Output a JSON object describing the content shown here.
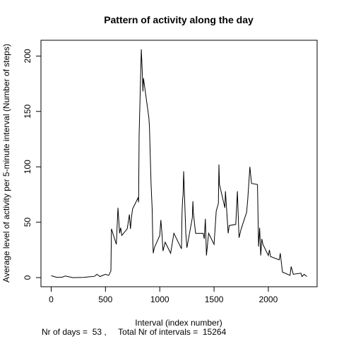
{
  "chart_data": {
    "type": "line",
    "title": "Pattern of activity along the day",
    "x_label": "Interval (index number)",
    "y_label": "Average level of activity per 5-minute interval (Number of steps)",
    "annotation": "Nr of days =  53 ,     Total Nr of intervals =  15264",
    "color": "#000000",
    "x": [
      0,
      50,
      100,
      130,
      200,
      300,
      400,
      420,
      450,
      500,
      530,
      550,
      555,
      600,
      610,
      615,
      630,
      640,
      650,
      700,
      710,
      720,
      730,
      740,
      750,
      800,
      805,
      810,
      830,
      835,
      840,
      845,
      850,
      900,
      905,
      920,
      930,
      935,
      940,
      950,
      1000,
      1010,
      1020,
      1030,
      1050,
      1100,
      1130,
      1200,
      1205,
      1210,
      1215,
      1220,
      1240,
      1250,
      1300,
      1305,
      1310,
      1330,
      1400,
      1410,
      1420,
      1430,
      1450,
      1500,
      1520,
      1540,
      1545,
      1550,
      1600,
      1605,
      1630,
      1640,
      1700,
      1715,
      1730,
      1750,
      1800,
      1810,
      1830,
      1845,
      1900,
      1910,
      1920,
      1930,
      1940,
      1950,
      2000,
      2010,
      2020,
      2100,
      2110,
      2130,
      2200,
      2210,
      2230,
      2300,
      2310,
      2330,
      2355
    ],
    "values": [
      1.7,
      0.3,
      0.3,
      1.5,
      0,
      0.2,
      1.2,
      3,
      1,
      3,
      2,
      6,
      44,
      30,
      52,
      63,
      40,
      45,
      38,
      44,
      50,
      57,
      44,
      55,
      62,
      72,
      68,
      129,
      206,
      195,
      183,
      168,
      180,
      144,
      136,
      84,
      62,
      37,
      22,
      27,
      38,
      52,
      40,
      24,
      32,
      22,
      40,
      26,
      58,
      70,
      75,
      96,
      40,
      27,
      54,
      69,
      58,
      40,
      40,
      35,
      53,
      20,
      40,
      30,
      60,
      67,
      102,
      84,
      63,
      78,
      40,
      47,
      48,
      78,
      36,
      44,
      59,
      70,
      100,
      85,
      84,
      28,
      45,
      20,
      35,
      30,
      20,
      25,
      19,
      16,
      22,
      5,
      2,
      10,
      3,
      4,
      1,
      3,
      1
    ],
    "xlim": [
      -94.2,
      2449.2
    ],
    "ylim": [
      -8.24,
      214.24
    ],
    "xticks": [
      0,
      500,
      1000,
      1500,
      2000
    ],
    "yticks": [
      0,
      50,
      100,
      150,
      200
    ]
  }
}
